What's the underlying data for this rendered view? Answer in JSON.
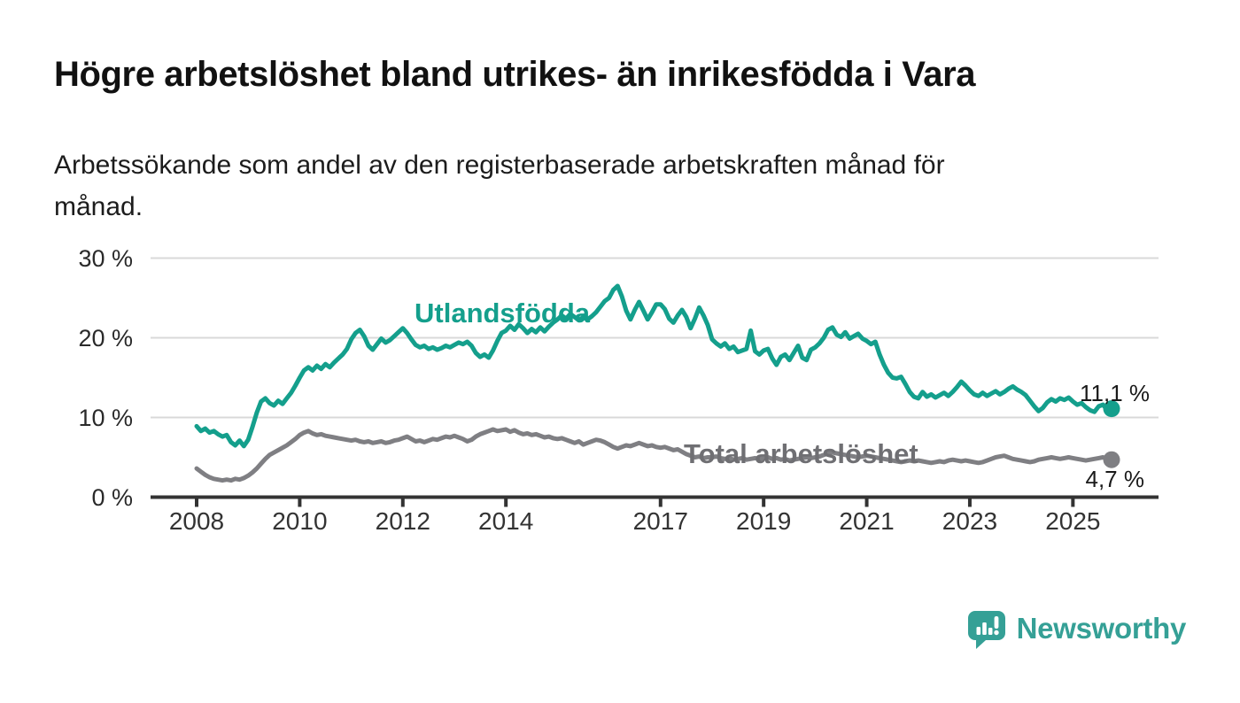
{
  "header": {
    "title": "Högre arbetslöshet bland utrikes- än inrikesfödda i Vara",
    "subtitle_lines": [
      "Arbetssökande som andel av den registerbaserade arbetskraften månad för",
      "månad."
    ]
  },
  "theme": {
    "accent_teal": "#149f8c",
    "series_gray": "#7f7f83",
    "label_gray": "#6f6f73",
    "grid_color": "#d9d9d9",
    "axis_color": "#333333",
    "text_color": "#1a1a1a",
    "background": "#ffffff"
  },
  "chart_data": {
    "type": "line",
    "unit": "percent",
    "frequency": "monthly",
    "start_month": "2008-01",
    "end_month": "2025-10",
    "ylim": [
      0,
      30
    ],
    "grid": "horizontal",
    "y_ticks": [
      {
        "value": 0,
        "label": "0 %"
      },
      {
        "value": 10,
        "label": "10 %"
      },
      {
        "value": 20,
        "label": "20 %"
      },
      {
        "value": 30,
        "label": "30 %"
      }
    ],
    "x_tick_years": [
      2008,
      2010,
      2012,
      2014,
      2017,
      2019,
      2021,
      2023,
      2025
    ],
    "series": [
      {
        "name": "Utlandsfödda",
        "color": "#149f8c",
        "end_label": "11,1 %",
        "last_value": 11.1,
        "values": [
          8.9,
          8.3,
          8.6,
          8.1,
          8.3,
          7.9,
          7.6,
          7.8,
          6.9,
          6.5,
          7.1,
          6.4,
          7.2,
          8.8,
          10.6,
          12.0,
          12.4,
          11.8,
          11.5,
          12.1,
          11.7,
          12.4,
          13.1,
          14.0,
          15.0,
          15.9,
          16.3,
          15.9,
          16.5,
          16.1,
          16.7,
          16.3,
          16.9,
          17.4,
          17.9,
          18.6,
          19.8,
          20.6,
          21.0,
          20.2,
          19.0,
          18.5,
          19.2,
          19.9,
          19.4,
          19.7,
          20.2,
          20.7,
          21.2,
          20.6,
          19.8,
          19.1,
          18.8,
          19.0,
          18.6,
          18.8,
          18.5,
          18.7,
          19.0,
          18.8,
          19.1,
          19.4,
          19.2,
          19.5,
          19.0,
          18.1,
          17.6,
          17.9,
          17.5,
          18.4,
          19.6,
          20.6,
          20.9,
          21.5,
          21.0,
          21.7,
          21.2,
          20.6,
          21.1,
          20.7,
          21.3,
          20.8,
          21.4,
          21.9,
          22.3,
          22.8,
          22.4,
          23.0,
          22.6,
          22.2,
          22.6,
          22.3,
          22.7,
          23.2,
          23.9,
          24.6,
          25.0,
          26.0,
          26.5,
          25.2,
          23.4,
          22.3,
          23.5,
          24.5,
          23.4,
          22.3,
          23.2,
          24.2,
          24.2,
          23.6,
          22.4,
          21.9,
          22.8,
          23.5,
          22.6,
          21.2,
          22.4,
          23.8,
          22.8,
          21.6,
          19.8,
          19.3,
          18.9,
          19.3,
          18.6,
          18.9,
          18.2,
          18.4,
          18.6,
          20.9,
          18.3,
          17.9,
          18.4,
          18.6,
          17.4,
          16.6,
          17.6,
          17.9,
          17.2,
          18.1,
          19.0,
          17.5,
          17.2,
          18.5,
          18.8,
          19.3,
          20.0,
          21.0,
          21.3,
          20.4,
          20.1,
          20.7,
          19.9,
          20.2,
          20.5,
          19.9,
          19.6,
          19.2,
          19.5,
          17.9,
          16.6,
          15.6,
          15.0,
          14.9,
          15.1,
          14.2,
          13.2,
          12.6,
          12.4,
          13.2,
          12.6,
          12.9,
          12.5,
          12.8,
          13.1,
          12.7,
          13.2,
          13.8,
          14.5,
          14.0,
          13.4,
          12.9,
          12.7,
          13.1,
          12.7,
          13.0,
          13.3,
          12.9,
          13.2,
          13.6,
          13.9,
          13.5,
          13.2,
          12.8,
          12.1,
          11.4,
          10.8,
          11.2,
          11.9,
          12.3,
          12.0,
          12.4,
          12.2,
          12.5,
          12.0,
          11.6,
          11.8,
          11.3,
          10.9,
          10.7,
          11.4,
          11.6,
          10.9,
          11.1
        ]
      },
      {
        "name": "Total arbetslöshet",
        "color": "#7f7f83",
        "end_label": "4,7 %",
        "last_value": 4.7,
        "values": [
          3.6,
          3.2,
          2.8,
          2.5,
          2.3,
          2.2,
          2.1,
          2.2,
          2.1,
          2.3,
          2.2,
          2.4,
          2.7,
          3.1,
          3.6,
          4.2,
          4.8,
          5.3,
          5.6,
          5.9,
          6.2,
          6.5,
          6.9,
          7.3,
          7.8,
          8.1,
          8.3,
          8.0,
          7.8,
          7.9,
          7.7,
          7.6,
          7.5,
          7.4,
          7.3,
          7.2,
          7.1,
          7.2,
          7.0,
          6.9,
          7.0,
          6.8,
          6.9,
          7.0,
          6.8,
          6.9,
          7.1,
          7.2,
          7.4,
          7.6,
          7.3,
          7.0,
          7.1,
          6.9,
          7.1,
          7.3,
          7.2,
          7.4,
          7.6,
          7.5,
          7.7,
          7.5,
          7.3,
          7.0,
          7.2,
          7.6,
          7.9,
          8.1,
          8.3,
          8.5,
          8.3,
          8.4,
          8.5,
          8.2,
          8.4,
          8.1,
          7.9,
          8.0,
          7.8,
          7.9,
          7.7,
          7.5,
          7.6,
          7.4,
          7.3,
          7.4,
          7.2,
          7.0,
          6.8,
          7.0,
          6.6,
          6.8,
          7.0,
          7.2,
          7.1,
          6.9,
          6.6,
          6.3,
          6.1,
          6.3,
          6.5,
          6.4,
          6.6,
          6.8,
          6.6,
          6.4,
          6.5,
          6.3,
          6.2,
          6.3,
          6.1,
          5.9,
          6.0,
          5.7,
          5.4,
          5.2,
          5.0,
          5.1,
          4.9,
          5.0,
          5.0,
          5.1,
          4.9,
          4.8,
          4.9,
          4.7,
          4.8,
          4.9,
          4.7,
          4.8,
          4.9,
          4.8,
          4.9,
          5.0,
          4.8,
          4.9,
          4.7,
          4.8,
          4.6,
          4.7,
          4.8,
          4.9,
          5.0,
          4.9,
          5.0,
          5.1,
          5.3,
          5.5,
          5.6,
          5.5,
          5.4,
          5.3,
          5.2,
          5.1,
          5.0,
          5.1,
          5.2,
          5.1,
          5.0,
          4.9,
          4.8,
          4.7,
          4.6,
          4.5,
          4.4,
          4.5,
          4.6,
          4.5,
          4.6,
          4.5,
          4.4,
          4.3,
          4.4,
          4.5,
          4.4,
          4.6,
          4.7,
          4.6,
          4.5,
          4.6,
          4.5,
          4.4,
          4.3,
          4.4,
          4.6,
          4.8,
          5.0,
          5.1,
          5.2,
          5.0,
          4.8,
          4.7,
          4.6,
          4.5,
          4.4,
          4.5,
          4.7,
          4.8,
          4.9,
          5.0,
          4.9,
          4.8,
          4.9,
          5.0,
          4.9,
          4.8,
          4.7,
          4.6,
          4.7,
          4.8,
          4.9,
          5.0,
          4.8,
          4.7
        ]
      }
    ]
  },
  "footer": {
    "brand": "Newsworthy",
    "brand_color": "#35a096"
  }
}
